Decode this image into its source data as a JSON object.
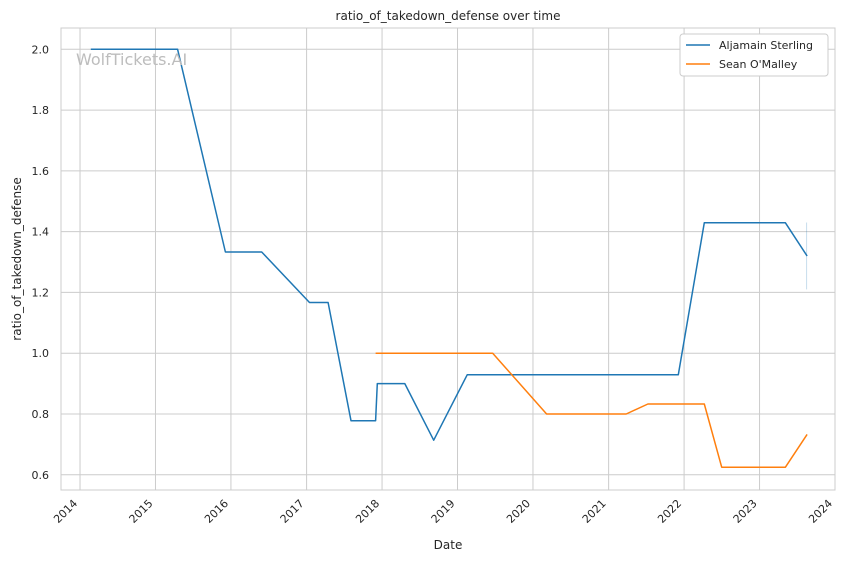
{
  "chart_data": {
    "type": "line",
    "title": "ratio_of_takedown_defense over time",
    "xlabel": "Date",
    "ylabel": "ratio_of_takedown_defense",
    "watermark": "WolfTickets.AI",
    "xlim": [
      "2013-10-01",
      "2024-01-01"
    ],
    "ylim": [
      0.55,
      2.07
    ],
    "grid": true,
    "legend_position": "top-right",
    "x_ticks": [
      "2014",
      "2015",
      "2016",
      "2017",
      "2018",
      "2019",
      "2020",
      "2021",
      "2022",
      "2023",
      "2024"
    ],
    "y_ticks": [
      "0.6",
      "0.8",
      "1.0",
      "1.2",
      "1.4",
      "1.6",
      "1.8",
      "2.0"
    ],
    "series": [
      {
        "name": "Aljamain Sterling",
        "color": "#1f77b4",
        "points": [
          {
            "x": "2014-02-22",
            "y": 2.0
          },
          {
            "x": "2015-04-18",
            "y": 2.0
          },
          {
            "x": "2015-12-05",
            "y": 1.333
          },
          {
            "x": "2016-05-29",
            "y": 1.333
          },
          {
            "x": "2017-01-15",
            "y": 1.167
          },
          {
            "x": "2017-04-15",
            "y": 1.167
          },
          {
            "x": "2017-08-04",
            "y": 0.778
          },
          {
            "x": "2017-12-01",
            "y": 0.778
          },
          {
            "x": "2017-12-09",
            "y": 0.9
          },
          {
            "x": "2018-04-21",
            "y": 0.9
          },
          {
            "x": "2018-09-08",
            "y": 0.714
          },
          {
            "x": "2019-02-17",
            "y": 0.929
          },
          {
            "x": "2021-12-04",
            "y": 0.929
          },
          {
            "x": "2022-04-09",
            "y": 1.429
          },
          {
            "x": "2023-05-06",
            "y": 1.429
          },
          {
            "x": "2023-08-19",
            "y": 1.32
          }
        ]
      },
      {
        "name": "Sean O'Malley",
        "color": "#ff7f0e",
        "points": [
          {
            "x": "2017-12-01",
            "y": 1.0
          },
          {
            "x": "2019-06-20",
            "y": 1.0
          },
          {
            "x": "2020-03-07",
            "y": 0.8
          },
          {
            "x": "2021-03-27",
            "y": 0.8
          },
          {
            "x": "2021-07-10",
            "y": 0.833
          },
          {
            "x": "2022-04-09",
            "y": 0.833
          },
          {
            "x": "2022-07-02",
            "y": 0.625
          },
          {
            "x": "2023-05-06",
            "y": 0.625
          },
          {
            "x": "2023-08-19",
            "y": 0.733
          }
        ]
      }
    ]
  }
}
